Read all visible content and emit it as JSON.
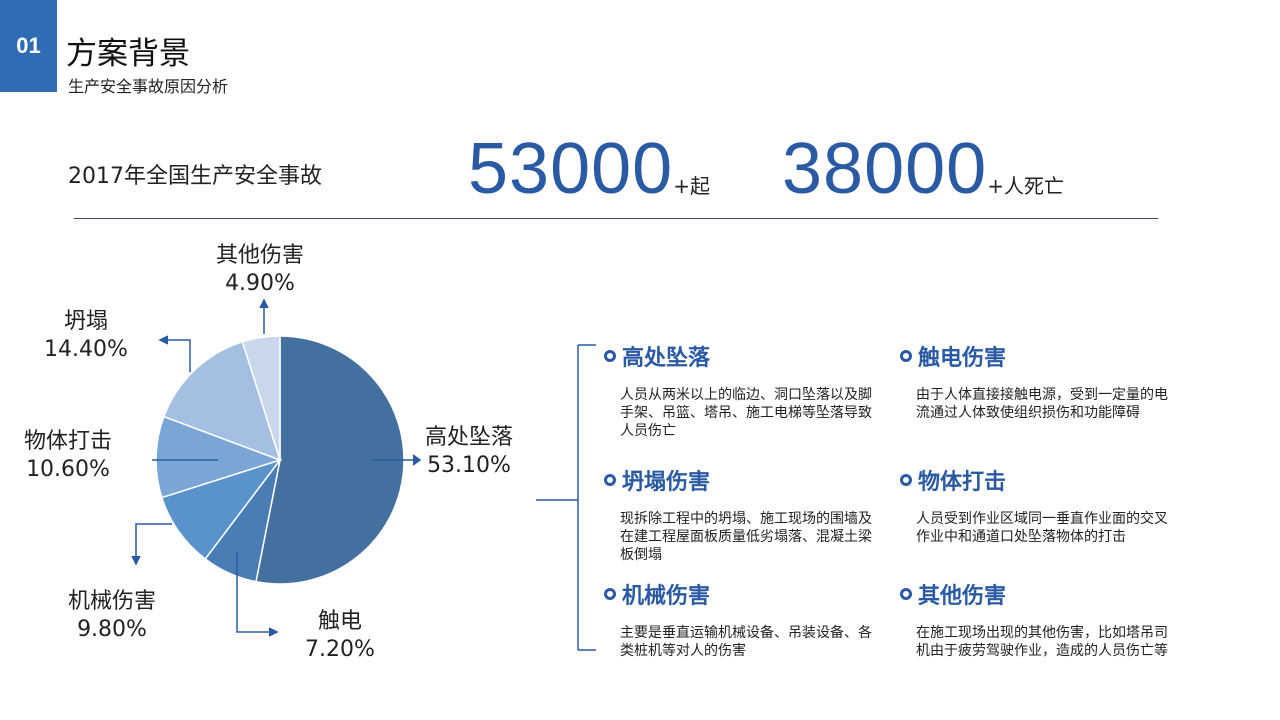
{
  "header": {
    "badge": "01",
    "title": "方案背景",
    "subtitle": "生产安全事故原因分析"
  },
  "stats": {
    "label": "2017年全国生产安全事故",
    "accidents": "53000",
    "accidents_unit": "+起",
    "deaths": "38000",
    "deaths_unit": "+人死亡"
  },
  "colors": {
    "accent": "#2a5aa4"
  },
  "chart_data": {
    "type": "pie",
    "categories": [
      "高处坠落",
      "触电",
      "机械伤害",
      "物体打击",
      "坍塌",
      "其他伤害"
    ],
    "values": [
      53.1,
      7.2,
      9.8,
      10.6,
      14.4,
      4.9
    ],
    "labels": [
      "53.10%",
      "7.20%",
      "9.80%",
      "10.60%",
      "14.40%",
      "4.90%"
    ],
    "colors": [
      "#44709f",
      "#4a7cb6",
      "#5a92cb",
      "#7aa6d5",
      "#a4bfe2",
      "#c9d7ec"
    ],
    "direction": "clockwise from top"
  },
  "sections": [
    {
      "title": "高处坠落",
      "desc": "人员从两米以上的临边、洞口坠落以及脚手架、吊篮、塔吊、施工电梯等坠落导致人员伤亡"
    },
    {
      "title": "触电伤害",
      "desc": "由于人体直接接触电源，受到一定量的电流通过人体致使组织损伤和功能障碍"
    },
    {
      "title": "坍塌伤害",
      "desc": "现拆除工程中的坍塌、施工现场的围墙及在建工程屋面板质量低劣塌落、混凝土梁板倒塌"
    },
    {
      "title": "物体打击",
      "desc": "人员受到作业区域同一垂直作业面的交叉作业中和通道口处坠落物体的打击"
    },
    {
      "title": "机械伤害",
      "desc": "主要是垂直运输机械设备、吊装设备、各类桩机等对人的伤害"
    },
    {
      "title": "其他伤害",
      "desc": "在施工现场出现的其他伤害，比如塔吊司机由于疲劳驾驶作业，造成的人员伤亡等"
    }
  ]
}
